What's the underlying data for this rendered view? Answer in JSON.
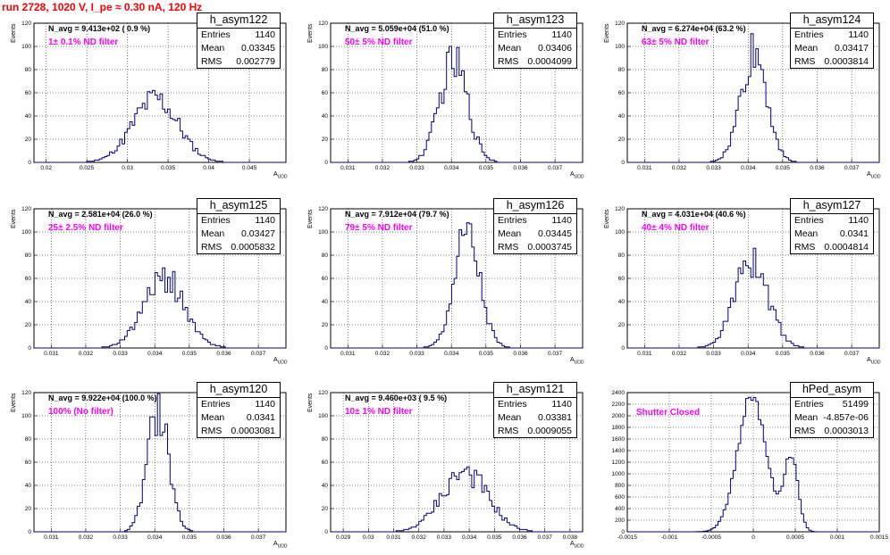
{
  "title": "run 2728,  1020 V, I_pe ≈ 0.30 nA, 120 Hz",
  "chart_data": [
    {
      "type": "bar",
      "name": "h_asym122",
      "stats": {
        "entries_label": "Entries",
        "entries": "1140",
        "mean_label": "Mean",
        "mean": "0.03345",
        "rms_label": "RMS",
        "rms": "0.002779"
      },
      "n_avg": "N_avg = 9.413e+02 ( 0.9 %)",
      "note": "1± 0.1% ND filter",
      "ylabel": "Events",
      "xlabel": "A_UDD",
      "xlim": [
        0.0185,
        0.0495
      ],
      "ylim": [
        0,
        120
      ],
      "xticks": [
        "0.02",
        "0.025",
        "0.03",
        "0.035",
        "0.04",
        "0.045"
      ],
      "xtick_values": [
        0.02,
        0.025,
        0.03,
        0.035,
        0.04,
        0.045
      ],
      "yticks": [
        0,
        20,
        40,
        60,
        80,
        100,
        120
      ],
      "mean_value": 0.03345,
      "rms_value": 0.002779,
      "peak": 55,
      "shape": "single"
    },
    {
      "type": "bar",
      "name": "h_asym123",
      "stats": {
        "entries_label": "Entries",
        "entries": "1140",
        "mean_label": "Mean",
        "mean": "0.03406",
        "rms_label": "RMS",
        "rms": "0.0004099"
      },
      "n_avg": "N_avg = 5.059e+04 (51.0 %)",
      "note": "50± 5% ND filter",
      "ylabel": "Events",
      "xlabel": "A_UDD",
      "xlim": [
        0.0305,
        0.0378
      ],
      "ylim": [
        0,
        120
      ],
      "xticks": [
        "0.031",
        "0.032",
        "0.033",
        "0.034",
        "0.035",
        "0.036",
        "0.037"
      ],
      "xtick_values": [
        0.031,
        0.032,
        0.033,
        0.034,
        0.035,
        0.036,
        0.037
      ],
      "yticks": [
        0,
        20,
        40,
        60,
        80,
        100,
        120
      ],
      "mean_value": 0.03406,
      "rms_value": 0.0004099,
      "peak": 86,
      "shape": "single"
    },
    {
      "type": "bar",
      "name": "h_asym124",
      "stats": {
        "entries_label": "Entries",
        "entries": "1140",
        "mean_label": "Mean",
        "mean": "0.03417",
        "rms_label": "RMS",
        "rms": "0.0003814"
      },
      "n_avg": "N_avg = 6.274e+04 (63.2 %)",
      "note": "63± 5% ND filter",
      "ylabel": "Events",
      "xlabel": "A_UDD",
      "xlim": [
        0.0305,
        0.0378
      ],
      "ylim": [
        0,
        120
      ],
      "xticks": [
        "0.031",
        "0.032",
        "0.033",
        "0.034",
        "0.035",
        "0.036",
        "0.037"
      ],
      "xtick_values": [
        0.031,
        0.032,
        0.033,
        0.034,
        0.035,
        0.036,
        0.037
      ],
      "yticks": [
        0,
        20,
        40,
        60,
        80,
        100,
        120
      ],
      "mean_value": 0.03417,
      "rms_value": 0.0003814,
      "peak": 95,
      "shape": "single"
    },
    {
      "type": "bar",
      "name": "h_asym125",
      "stats": {
        "entries_label": "Entries",
        "entries": "1140",
        "mean_label": "Mean",
        "mean": "0.03427",
        "rms_label": "RMS",
        "rms": "0.0005832"
      },
      "n_avg": "N_avg = 2.581e+04 (26.0 %)",
      "note": "25± 2.5% ND filter",
      "ylabel": "Events",
      "xlabel": "A_UDD",
      "xlim": [
        0.0305,
        0.0378
      ],
      "ylim": [
        0,
        120
      ],
      "xticks": [
        "0.031",
        "0.032",
        "0.033",
        "0.034",
        "0.035",
        "0.036",
        "0.037"
      ],
      "xtick_values": [
        0.031,
        0.032,
        0.033,
        0.034,
        0.035,
        0.036,
        0.037
      ],
      "yticks": [
        0,
        20,
        40,
        60,
        80,
        100,
        120
      ],
      "mean_value": 0.03427,
      "rms_value": 0.0005832,
      "peak": 61,
      "shape": "single"
    },
    {
      "type": "bar",
      "name": "h_asym126",
      "stats": {
        "entries_label": "Entries",
        "entries": "1140",
        "mean_label": "Mean",
        "mean": "0.03445",
        "rms_label": "RMS",
        "rms": "0.0003745"
      },
      "n_avg": "N_avg = 7.912e+04 (79.7 %)",
      "note": "79± 5% ND filter",
      "ylabel": "Events",
      "xlabel": "A_UDD",
      "xlim": [
        0.0305,
        0.0378
      ],
      "ylim": [
        0,
        120
      ],
      "xticks": [
        "0.031",
        "0.032",
        "0.033",
        "0.034",
        "0.035",
        "0.036",
        "0.037"
      ],
      "xtick_values": [
        0.031,
        0.032,
        0.033,
        0.034,
        0.035,
        0.036,
        0.037
      ],
      "yticks": [
        0,
        20,
        40,
        60,
        80,
        100,
        120
      ],
      "mean_value": 0.03445,
      "rms_value": 0.0003745,
      "peak": 96,
      "shape": "single"
    },
    {
      "type": "bar",
      "name": "h_asym127",
      "stats": {
        "entries_label": "Entries",
        "entries": "1140",
        "mean_label": "Mean",
        "mean": "0.0341",
        "rms_label": "RMS",
        "rms": "0.0004814"
      },
      "n_avg": "N_avg = 4.031e+04 (40.6 %)",
      "note": "40± 4% ND filter",
      "ylabel": "Events",
      "xlabel": "A_UDD",
      "xlim": [
        0.0305,
        0.0378
      ],
      "ylim": [
        0,
        120
      ],
      "xticks": [
        "0.031",
        "0.032",
        "0.033",
        "0.034",
        "0.035",
        "0.036",
        "0.037"
      ],
      "xtick_values": [
        0.031,
        0.032,
        0.033,
        0.034,
        0.035,
        0.036,
        0.037
      ],
      "yticks": [
        0,
        20,
        40,
        60,
        80,
        100,
        120
      ],
      "mean_value": 0.0341,
      "rms_value": 0.0004814,
      "peak": 76,
      "shape": "single"
    },
    {
      "type": "bar",
      "name": "h_asym120",
      "stats": {
        "entries_label": "Entries",
        "entries": "1140",
        "mean_label": "Mean",
        "mean": "0.0341",
        "rms_label": "RMS",
        "rms": "0.0003081"
      },
      "n_avg": "N_avg = 9.922e+04 (100.0 %)",
      "note": "100% (No filter)",
      "ylabel": "Events",
      "xlabel": "A_UDD",
      "xlim": [
        0.0305,
        0.0378
      ],
      "ylim": [
        0,
        120
      ],
      "xticks": [
        "0.031",
        "0.032",
        "0.033",
        "0.034",
        "0.035",
        "0.036",
        "0.037"
      ],
      "xtick_values": [
        0.031,
        0.032,
        0.033,
        0.034,
        0.035,
        0.036,
        0.037
      ],
      "yticks": [
        0,
        20,
        40,
        60,
        80,
        100,
        120
      ],
      "mean_value": 0.0341,
      "rms_value": 0.0003081,
      "peak": 106,
      "shape": "single"
    },
    {
      "type": "bar",
      "name": "h_asym121",
      "stats": {
        "entries_label": "Entries",
        "entries": "1140",
        "mean_label": "Mean",
        "mean": "0.03381",
        "rms_label": "RMS",
        "rms": "0.0009055"
      },
      "n_avg": "N_avg = 9.460e+03 ( 9.5 %)",
      "note": "10± 1% ND filter",
      "ylabel": "Events",
      "xlabel": "A_UDD",
      "xlim": [
        0.0285,
        0.0385
      ],
      "ylim": [
        0,
        120
      ],
      "xticks": [
        "0.029",
        "0.03",
        "0.031",
        "0.032",
        "0.033",
        "0.034",
        "0.035",
        "0.036",
        "0.037",
        "0.038"
      ],
      "xtick_values": [
        0.029,
        0.03,
        0.031,
        0.032,
        0.033,
        0.034,
        0.035,
        0.036,
        0.037,
        0.038
      ],
      "yticks": [
        0,
        20,
        40,
        60,
        80,
        100,
        120
      ],
      "mean_value": 0.03381,
      "rms_value": 0.0009055,
      "peak": 52,
      "shape": "single"
    },
    {
      "type": "bar",
      "name": "hPed_asym",
      "stats": {
        "entries_label": "Entries",
        "entries": "51499",
        "mean_label": "Mean",
        "mean": "-4.857e-06",
        "rms_label": "RMS",
        "rms": "0.0003013"
      },
      "n_avg": "",
      "note": "Shutter Closed",
      "ylabel": "",
      "xlabel": "",
      "xlim": [
        -0.0015,
        0.0015
      ],
      "ylim": [
        0,
        2400
      ],
      "xticks": [
        "-0.0015",
        "-0.001",
        "-0.0005",
        "0",
        "0.0005",
        "0.001",
        "0.0015"
      ],
      "xtick_values": [
        -0.0015,
        -0.001,
        -0.0005,
        0,
        0.0005,
        0.001,
        0.0015
      ],
      "yticks": [
        0,
        200,
        400,
        600,
        800,
        1000,
        1200,
        1400,
        1600,
        1800,
        2000,
        2200,
        2400
      ],
      "peaks": [
        {
          "center": -1.67e-05,
          "sigma": 0.00017,
          "height": 2350
        },
        {
          "center": 0.00045,
          "sigma": 8e-05,
          "height": 1300
        }
      ],
      "shape": "double"
    }
  ]
}
